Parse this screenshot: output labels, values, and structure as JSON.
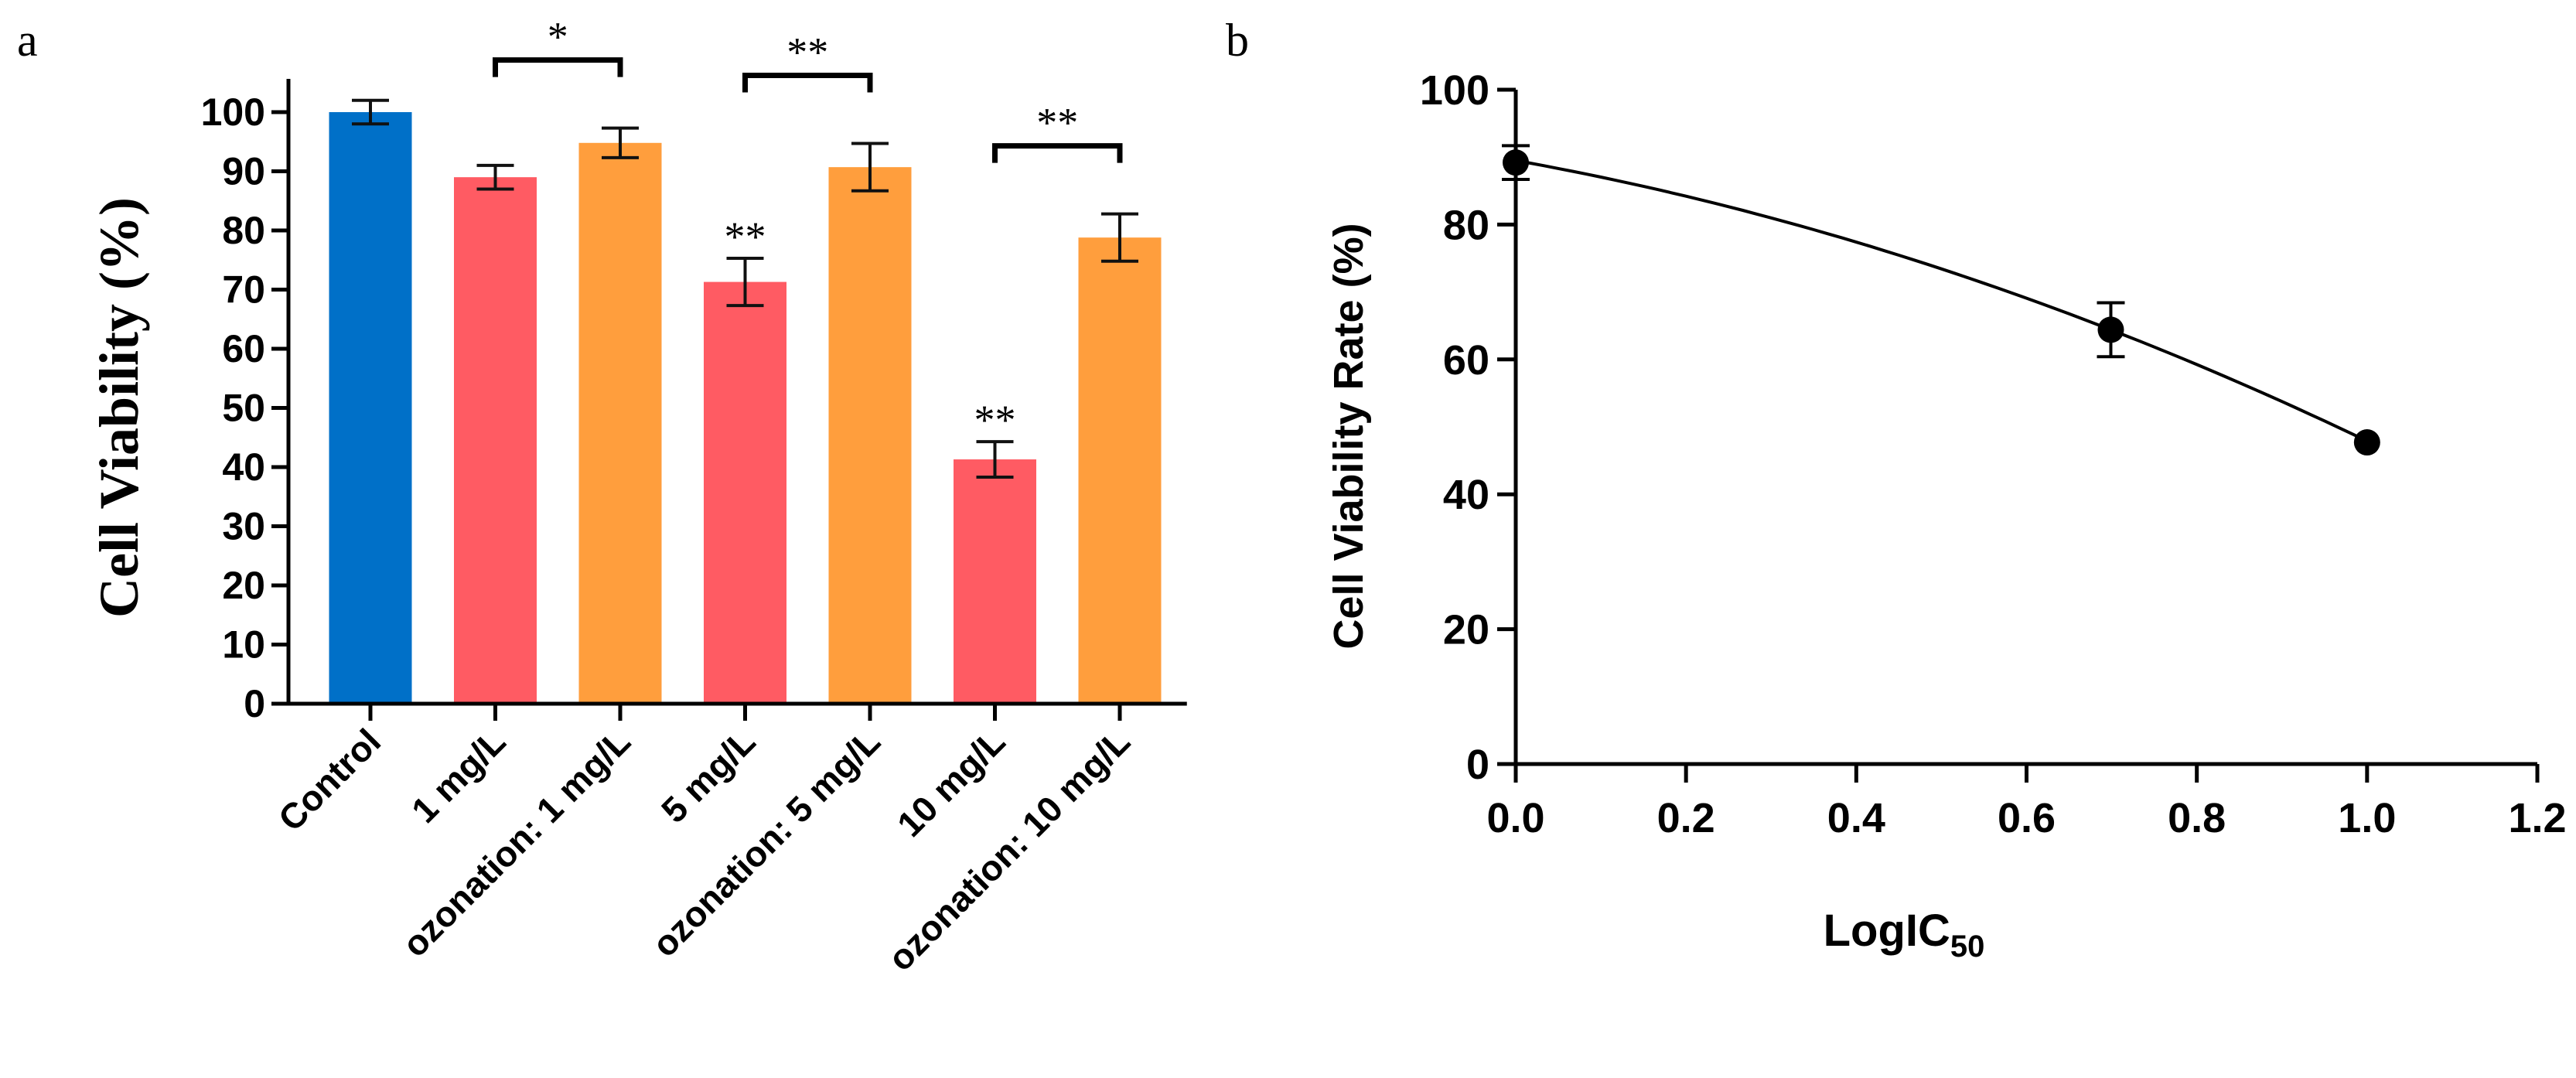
{
  "panels": {
    "a_label": "a",
    "b_label": "b"
  },
  "chart_data": [
    {
      "type": "bar",
      "panel": "a",
      "title": "",
      "xlabel": "",
      "ylabel": "Cell Viability (%)",
      "ylim": [
        0,
        105
      ],
      "yticks": [
        0,
        10,
        20,
        30,
        40,
        50,
        60,
        70,
        80,
        90,
        100
      ],
      "grid": false,
      "categories": [
        "Control",
        "1 mg/L",
        "ozonation: 1 mg/L",
        "5 mg/L",
        "ozonation: 5 mg/L",
        "10 mg/L",
        "ozonation: 10 mg/L"
      ],
      "values": [
        100,
        89,
        94.8,
        71.3,
        90.7,
        41.3,
        78.8
      ],
      "errors": [
        2.0,
        2.0,
        2.5,
        4.0,
        4.0,
        3.0,
        4.0
      ],
      "colors": [
        "#0070C8",
        "#FF5B63",
        "#FF9E3D",
        "#FF5B63",
        "#FF9E3D",
        "#FF5B63",
        "#FF9E3D"
      ],
      "annotations": [
        {
          "type": "star",
          "index": 3,
          "text": "**"
        },
        {
          "type": "star",
          "index": 5,
          "text": "**"
        }
      ],
      "brackets": [
        {
          "from": 1,
          "to": 2,
          "text": "*"
        },
        {
          "from": 3,
          "to": 4,
          "text": "**"
        },
        {
          "from": 5,
          "to": 6,
          "text": "**"
        }
      ]
    },
    {
      "type": "line",
      "panel": "b",
      "title": "",
      "xlabel_main": "LogIC",
      "xlabel_sub": "50",
      "ylabel": "Cell Viability Rate (%)",
      "xlim": [
        0,
        1.2
      ],
      "ylim": [
        0,
        100
      ],
      "xticks": [
        0.0,
        0.2,
        0.4,
        0.6,
        0.8,
        1.0,
        1.2
      ],
      "xtick_labels": [
        "0.0",
        "0.2",
        "0.4",
        "0.6",
        "0.8",
        "1.0",
        "1.2"
      ],
      "yticks": [
        0,
        20,
        40,
        60,
        80,
        100
      ],
      "grid": false,
      "x": [
        0.0,
        0.699,
        1.0
      ],
      "y": [
        89.2,
        64.4,
        47.7
      ],
      "errors": [
        2.5,
        4.0,
        1.0
      ],
      "fit_curve": {
        "type": "quadratic",
        "points": [
          [
            0,
            89.5
          ],
          [
            0.699,
            64.4
          ],
          [
            1.0,
            47.9
          ]
        ]
      }
    }
  ]
}
